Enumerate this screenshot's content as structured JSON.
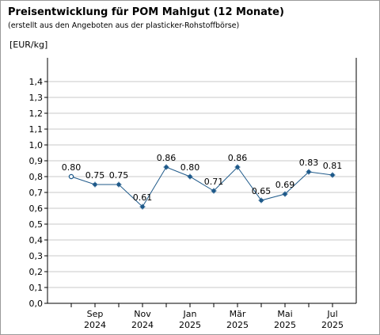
{
  "title": "Preisentwicklung für POM Mahlgut (12 Monate)",
  "subtitle": "(erstellt aus den Angeboten aus der plasticker-Rohstoffbörse)",
  "chart_data": {
    "type": "line",
    "ylabel": "[EUR/kg]",
    "ylim": [
      0,
      1.4
    ],
    "yticks": [
      "0,0",
      "0,1",
      "0,2",
      "0,3",
      "0,4",
      "0,5",
      "0,6",
      "0,7",
      "0,8",
      "0,9",
      "1,0",
      "1,1",
      "1,2",
      "1,3",
      "1,4"
    ],
    "grid": true,
    "x_labels": [
      {
        "month": "Sep",
        "year": "2024",
        "index": 1
      },
      {
        "month": "Nov",
        "year": "2024",
        "index": 3
      },
      {
        "month": "Jan",
        "year": "2025",
        "index": 5
      },
      {
        "month": "Mär",
        "year": "2025",
        "index": 7
      },
      {
        "month": "Mai",
        "year": "2025",
        "index": 9
      },
      {
        "month": "Jul",
        "year": "2025",
        "index": 11
      }
    ],
    "values": [
      0.8,
      0.75,
      0.75,
      0.61,
      0.86,
      0.8,
      0.71,
      0.86,
      0.65,
      0.69,
      0.83,
      0.81
    ],
    "labels": [
      "0.80",
      "0.75",
      "0.75",
      "0.61",
      "0.86",
      "0.80",
      "0.71",
      "0.86",
      "0.65",
      "0.69",
      "0.83",
      "0.81"
    ],
    "colors": {
      "line": "#1f5a8a",
      "grid": "#c8c8c8",
      "axis": "#000000"
    }
  }
}
